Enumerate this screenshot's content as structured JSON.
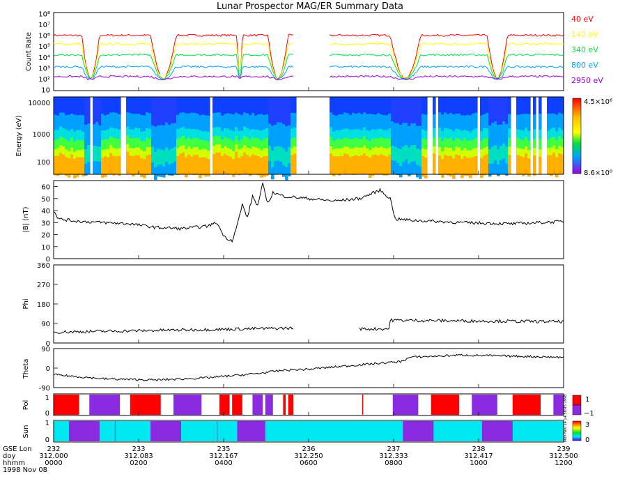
{
  "title": "Lunar Prospector MAG/ER Summary Data",
  "colors": {
    "red": "#ff0000",
    "yellow": "#ffff00",
    "green": "#00e040",
    "blue": "#00a0ff",
    "purple": "#a000e0",
    "cyan": "#00e8f0",
    "violet": "#8a2be2"
  },
  "chart_data": [
    {
      "type": "line",
      "panel": "count-rate",
      "ylabel": "Count Rate",
      "yscale": "log",
      "yticks": [
        "10",
        "10²",
        "10³",
        "10⁴",
        "10⁵",
        "10⁶",
        "10⁷",
        "10⁸"
      ],
      "ylim": [
        1,
        8
      ],
      "series": [
        {
          "name": "40 eV",
          "color": "#ff0000",
          "level": 6.0
        },
        {
          "name": "140 eV",
          "color": "#ffff00",
          "level": 5.2
        },
        {
          "name": "340 eV",
          "color": "#00e040",
          "level": 4.2
        },
        {
          "name": "800 eV",
          "color": "#00a0ff",
          "level": 3.1
        },
        {
          "name": "2950 eV",
          "color": "#a000e0",
          "level": 2.2
        }
      ]
    },
    {
      "type": "heatmap",
      "panel": "energy-spectrogram",
      "ylabel": "Energy (eV)",
      "yticks": [
        "10000",
        "1000",
        "100"
      ],
      "colorbar_max": "4.5×10⁶",
      "colorbar_min": "8.6×10⁰"
    },
    {
      "type": "line",
      "panel": "magnetic-field",
      "ylabel": "|B| (nT)",
      "ylim": [
        0,
        65
      ],
      "yticks": [
        0,
        10,
        20,
        30,
        40,
        50,
        60
      ]
    },
    {
      "type": "scatter",
      "panel": "phi",
      "ylabel": "Phi",
      "ylim": [
        0,
        360
      ],
      "yticks": [
        0,
        90,
        180,
        270,
        360
      ]
    },
    {
      "type": "line",
      "panel": "theta",
      "ylabel": "Theta",
      "ylim": [
        -90,
        90
      ],
      "yticks": [
        -90,
        0,
        90
      ]
    },
    {
      "type": "bar",
      "panel": "polarity",
      "ylabel": "Pol",
      "yticks": [
        "0",
        "1"
      ],
      "colorbar_labels": [
        "1",
        "−1"
      ]
    },
    {
      "type": "bar",
      "panel": "sun",
      "ylabel": "Sun",
      "yticks": [
        "0",
        "1"
      ],
      "colorbar_labels": [
        "3",
        "0"
      ]
    }
  ],
  "xaxis": {
    "row_labels": [
      "GSE Lon",
      "doy",
      "hhmm",
      "1998 Nov 08"
    ],
    "ticks": [
      {
        "lon": "232",
        "doy": "312.000",
        "hhmm": "0000"
      },
      {
        "lon": "233",
        "doy": "312.083",
        "hhmm": "0200"
      },
      {
        "lon": "235",
        "doy": "312.167",
        "hhmm": "0400"
      },
      {
        "lon": "236",
        "doy": "312.250",
        "hhmm": "0600"
      },
      {
        "lon": "237",
        "doy": "312.333",
        "hhmm": "0800"
      },
      {
        "lon": "238",
        "doy": "312.417",
        "hhmm": "1000"
      },
      {
        "lon": "239",
        "doy": "312.500",
        "hhmm": "1200"
      }
    ]
  },
  "timestamp_note": "Mon Nov 24 14:58:45 1998"
}
